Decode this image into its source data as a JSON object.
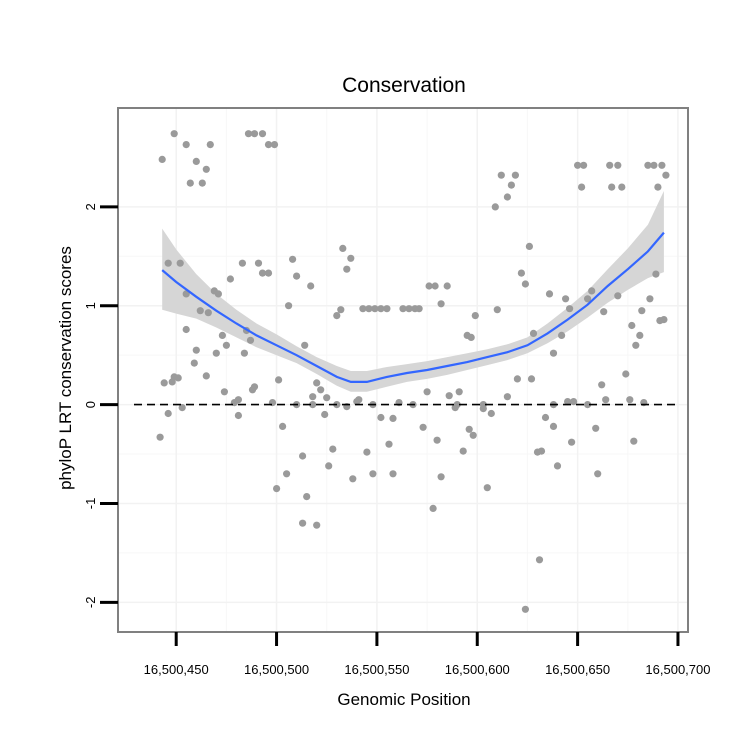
{
  "chart_data": {
    "type": "scatter",
    "title": "Conservation",
    "xlabel": "Genomic Position",
    "ylabel": "phyloP LRT conservation scores",
    "xlim": [
      16500421,
      16500705
    ],
    "ylim": [
      -2.3,
      3.0
    ],
    "x_ticks": [
      {
        "value": 16500450,
        "label": "16,500,450"
      },
      {
        "value": 16500500,
        "label": "16,500,500"
      },
      {
        "value": 16500550,
        "label": "16,500,550"
      },
      {
        "value": 16500600,
        "label": "16,500,600"
      },
      {
        "value": 16500650,
        "label": "16,500,650"
      },
      {
        "value": 16500700,
        "label": "16,500,700"
      }
    ],
    "y_ticks": [
      {
        "value": -2,
        "label": "-2"
      },
      {
        "value": -1,
        "label": "-1"
      },
      {
        "value": 0,
        "label": "0"
      },
      {
        "value": 1,
        "label": "1"
      },
      {
        "value": 2,
        "label": "2"
      }
    ],
    "reference_line": {
      "y": 0,
      "style": "dashed",
      "color": "#000000"
    },
    "colors": {
      "points": "#9a9a9a",
      "smooth_line": "#3366ff",
      "ribbon": "#d6d6d6",
      "panel_border": "#808080"
    },
    "series": [
      {
        "name": "phyloP scores",
        "points": [
          [
            16500443,
            2.48
          ],
          [
            16500449,
            2.74
          ],
          [
            16500455,
            2.63
          ],
          [
            16500457,
            2.24
          ],
          [
            16500460,
            2.46
          ],
          [
            16500463,
            2.24
          ],
          [
            16500465,
            2.38
          ],
          [
            16500467,
            2.63
          ],
          [
            16500446,
            1.43
          ],
          [
            16500452,
            1.43
          ],
          [
            16500455,
            1.12
          ],
          [
            16500444,
            0.22
          ],
          [
            16500448,
            0.23
          ],
          [
            16500451,
            0.27
          ],
          [
            16500442,
            -0.33
          ],
          [
            16500446,
            -0.09
          ],
          [
            16500453,
            -0.03
          ],
          [
            16500455,
            0.76
          ],
          [
            16500459,
            0.42
          ],
          [
            16500462,
            0.95
          ],
          [
            16500465,
            0.29
          ],
          [
            16500469,
            1.15
          ],
          [
            16500471,
            1.12
          ],
          [
            16500473,
            0.7
          ],
          [
            16500475,
            0.6
          ],
          [
            16500477,
            1.27
          ],
          [
            16500479,
            0.02
          ],
          [
            16500481,
            -0.11
          ],
          [
            16500483,
            1.43
          ],
          [
            16500485,
            0.75
          ],
          [
            16500487,
            0.65
          ],
          [
            16500489,
            0.18
          ],
          [
            16500491,
            1.43
          ],
          [
            16500493,
            1.33
          ],
          [
            16500496,
            1.33
          ],
          [
            16500486,
            2.74
          ],
          [
            16500489,
            2.74
          ],
          [
            16500493,
            2.74
          ],
          [
            16500496,
            2.63
          ],
          [
            16500499,
            2.63
          ],
          [
            16500501,
            0.25
          ],
          [
            16500503,
            -0.22
          ],
          [
            16500505,
            -0.7
          ],
          [
            16500500,
            -0.85
          ],
          [
            16500508,
            1.47
          ],
          [
            16500510,
            1.3
          ],
          [
            16500506,
            1.0
          ],
          [
            16500513,
            -0.52
          ],
          [
            16500515,
            -0.93
          ],
          [
            16500513,
            -1.2
          ],
          [
            16500520,
            -1.22
          ],
          [
            16500514,
            0.6
          ],
          [
            16500517,
            1.2
          ],
          [
            16500518,
            0.08
          ],
          [
            16500520,
            0.22
          ],
          [
            16500522,
            0.15
          ],
          [
            16500524,
            -0.1
          ],
          [
            16500526,
            -0.62
          ],
          [
            16500528,
            -0.45
          ],
          [
            16500530,
            0.9
          ],
          [
            16500532,
            0.96
          ],
          [
            16500533,
            1.58
          ],
          [
            16500535,
            1.37
          ],
          [
            16500537,
            1.48
          ],
          [
            16500538,
            -0.75
          ],
          [
            16500541,
            0.05
          ],
          [
            16500543,
            0.97
          ],
          [
            16500546,
            0.97
          ],
          [
            16500549,
            0.97
          ],
          [
            16500552,
            0.97
          ],
          [
            16500555,
            0.97
          ],
          [
            16500545,
            -0.48
          ],
          [
            16500548,
            -0.7
          ],
          [
            16500552,
            -0.13
          ],
          [
            16500556,
            -0.4
          ],
          [
            16500558,
            -0.7
          ],
          [
            16500561,
            0.02
          ],
          [
            16500563,
            0.97
          ],
          [
            16500566,
            0.97
          ],
          [
            16500569,
            0.97
          ],
          [
            16500571,
            0.97
          ],
          [
            16500576,
            1.2
          ],
          [
            16500579,
            1.2
          ],
          [
            16500582,
            1.02
          ],
          [
            16500585,
            1.2
          ],
          [
            16500573,
            -0.23
          ],
          [
            16500578,
            -1.05
          ],
          [
            16500580,
            -0.36
          ],
          [
            16500582,
            -0.73
          ],
          [
            16500586,
            0.09
          ],
          [
            16500589,
            -0.03
          ],
          [
            16500591,
            0.13
          ],
          [
            16500593,
            -0.47
          ],
          [
            16500595,
            0.7
          ],
          [
            16500597,
            0.68
          ],
          [
            16500599,
            0.9
          ],
          [
            16500596,
            -0.25
          ],
          [
            16500598,
            -0.31
          ],
          [
            16500603,
            0.0
          ],
          [
            16500605,
            -0.84
          ],
          [
            16500607,
            -0.09
          ],
          [
            16500609,
            2.0
          ],
          [
            16500612,
            2.32
          ],
          [
            16500615,
            2.1
          ],
          [
            16500617,
            2.22
          ],
          [
            16500619,
            2.32
          ],
          [
            16500610,
            0.96
          ],
          [
            16500620,
            0.26
          ],
          [
            16500622,
            1.33
          ],
          [
            16500624,
            1.22
          ],
          [
            16500626,
            1.6
          ],
          [
            16500628,
            0.72
          ],
          [
            16500630,
            -0.48
          ],
          [
            16500632,
            -0.47
          ],
          [
            16500631,
            -1.57
          ],
          [
            16500624,
            -2.07
          ],
          [
            16500634,
            -0.13
          ],
          [
            16500636,
            1.12
          ],
          [
            16500638,
            0.52
          ],
          [
            16500638,
            -0.22
          ],
          [
            16500640,
            -0.62
          ],
          [
            16500642,
            0.7
          ],
          [
            16500644,
            1.07
          ],
          [
            16500646,
            0.97
          ],
          [
            16500647,
            -0.38
          ],
          [
            16500648,
            0.03
          ],
          [
            16500650,
            2.42
          ],
          [
            16500653,
            2.42
          ],
          [
            16500652,
            2.2
          ],
          [
            16500655,
            1.07
          ],
          [
            16500657,
            1.15
          ],
          [
            16500659,
            -0.24
          ],
          [
            16500660,
            -0.7
          ],
          [
            16500662,
            0.2
          ],
          [
            16500664,
            0.05
          ],
          [
            16500666,
            2.42
          ],
          [
            16500667,
            2.2
          ],
          [
            16500670,
            2.42
          ],
          [
            16500672,
            2.2
          ],
          [
            16500674,
            0.31
          ],
          [
            16500676,
            0.05
          ],
          [
            16500677,
            0.8
          ],
          [
            16500679,
            0.6
          ],
          [
            16500681,
            0.7
          ],
          [
            16500678,
            -0.37
          ],
          [
            16500683,
            0.02
          ],
          [
            16500685,
            2.42
          ],
          [
            16500688,
            2.42
          ],
          [
            16500690,
            2.2
          ],
          [
            16500692,
            2.42
          ],
          [
            16500694,
            2.32
          ],
          [
            16500693,
            0.86
          ],
          [
            16500691,
            0.85
          ],
          [
            16500689,
            1.32
          ],
          [
            16500686,
            1.07
          ],
          [
            16500682,
            0.95
          ],
          [
            16500670,
            1.1
          ],
          [
            16500663,
            0.94
          ],
          [
            16500655,
            0.0
          ],
          [
            16500645,
            0.03
          ],
          [
            16500638,
            0.0
          ],
          [
            16500627,
            0.26
          ],
          [
            16500615,
            0.08
          ],
          [
            16500603,
            -0.04
          ],
          [
            16500590,
            0.0
          ],
          [
            16500575,
            0.13
          ],
          [
            16500568,
            0.0
          ],
          [
            16500558,
            -0.14
          ],
          [
            16500548,
            0.0
          ],
          [
            16500540,
            0.03
          ],
          [
            16500535,
            -0.02
          ],
          [
            16500530,
            0.0
          ],
          [
            16500525,
            0.07
          ],
          [
            16500518,
            0.0
          ],
          [
            16500510,
            0.0
          ],
          [
            16500498,
            0.02
          ],
          [
            16500488,
            0.15
          ],
          [
            16500481,
            0.05
          ],
          [
            16500470,
            0.52
          ],
          [
            16500466,
            0.93
          ],
          [
            16500460,
            0.55
          ],
          [
            16500449,
            0.28
          ],
          [
            16500474,
            0.13
          ],
          [
            16500484,
            0.52
          ]
        ]
      },
      {
        "name": "smooth",
        "fit": [
          [
            16500443,
            1.36
          ],
          [
            16500450,
            1.24
          ],
          [
            16500460,
            1.09
          ],
          [
            16500470,
            0.95
          ],
          [
            16500480,
            0.82
          ],
          [
            16500490,
            0.7
          ],
          [
            16500500,
            0.6
          ],
          [
            16500510,
            0.5
          ],
          [
            16500520,
            0.39
          ],
          [
            16500530,
            0.28
          ],
          [
            16500537,
            0.23
          ],
          [
            16500545,
            0.23
          ],
          [
            16500555,
            0.28
          ],
          [
            16500565,
            0.32
          ],
          [
            16500575,
            0.35
          ],
          [
            16500585,
            0.39
          ],
          [
            16500595,
            0.43
          ],
          [
            16500605,
            0.48
          ],
          [
            16500615,
            0.53
          ],
          [
            16500625,
            0.6
          ],
          [
            16500635,
            0.72
          ],
          [
            16500645,
            0.86
          ],
          [
            16500655,
            1.01
          ],
          [
            16500665,
            1.2
          ],
          [
            16500675,
            1.37
          ],
          [
            16500685,
            1.55
          ],
          [
            16500693,
            1.74
          ]
        ],
        "lower": [
          [
            16500443,
            0.96
          ],
          [
            16500450,
            0.92
          ],
          [
            16500460,
            0.87
          ],
          [
            16500470,
            0.78
          ],
          [
            16500480,
            0.68
          ],
          [
            16500490,
            0.58
          ],
          [
            16500500,
            0.5
          ],
          [
            16500510,
            0.42
          ],
          [
            16500520,
            0.31
          ],
          [
            16500530,
            0.19
          ],
          [
            16500537,
            0.13
          ],
          [
            16500545,
            0.13
          ],
          [
            16500555,
            0.18
          ],
          [
            16500565,
            0.23
          ],
          [
            16500575,
            0.26
          ],
          [
            16500585,
            0.3
          ],
          [
            16500595,
            0.35
          ],
          [
            16500605,
            0.4
          ],
          [
            16500615,
            0.45
          ],
          [
            16500625,
            0.52
          ],
          [
            16500635,
            0.62
          ],
          [
            16500645,
            0.74
          ],
          [
            16500655,
            0.88
          ],
          [
            16500665,
            1.03
          ],
          [
            16500675,
            1.16
          ],
          [
            16500685,
            1.28
          ],
          [
            16500693,
            1.34
          ]
        ],
        "upper": [
          [
            16500443,
            1.78
          ],
          [
            16500450,
            1.57
          ],
          [
            16500460,
            1.32
          ],
          [
            16500470,
            1.12
          ],
          [
            16500480,
            0.96
          ],
          [
            16500490,
            0.82
          ],
          [
            16500500,
            0.71
          ],
          [
            16500510,
            0.59
          ],
          [
            16500520,
            0.48
          ],
          [
            16500530,
            0.39
          ],
          [
            16500537,
            0.34
          ],
          [
            16500545,
            0.34
          ],
          [
            16500555,
            0.38
          ],
          [
            16500565,
            0.41
          ],
          [
            16500575,
            0.44
          ],
          [
            16500585,
            0.48
          ],
          [
            16500595,
            0.52
          ],
          [
            16500605,
            0.56
          ],
          [
            16500615,
            0.61
          ],
          [
            16500625,
            0.68
          ],
          [
            16500635,
            0.82
          ],
          [
            16500645,
            0.98
          ],
          [
            16500655,
            1.15
          ],
          [
            16500665,
            1.37
          ],
          [
            16500675,
            1.58
          ],
          [
            16500685,
            1.82
          ],
          [
            16500693,
            2.16
          ]
        ]
      }
    ]
  }
}
